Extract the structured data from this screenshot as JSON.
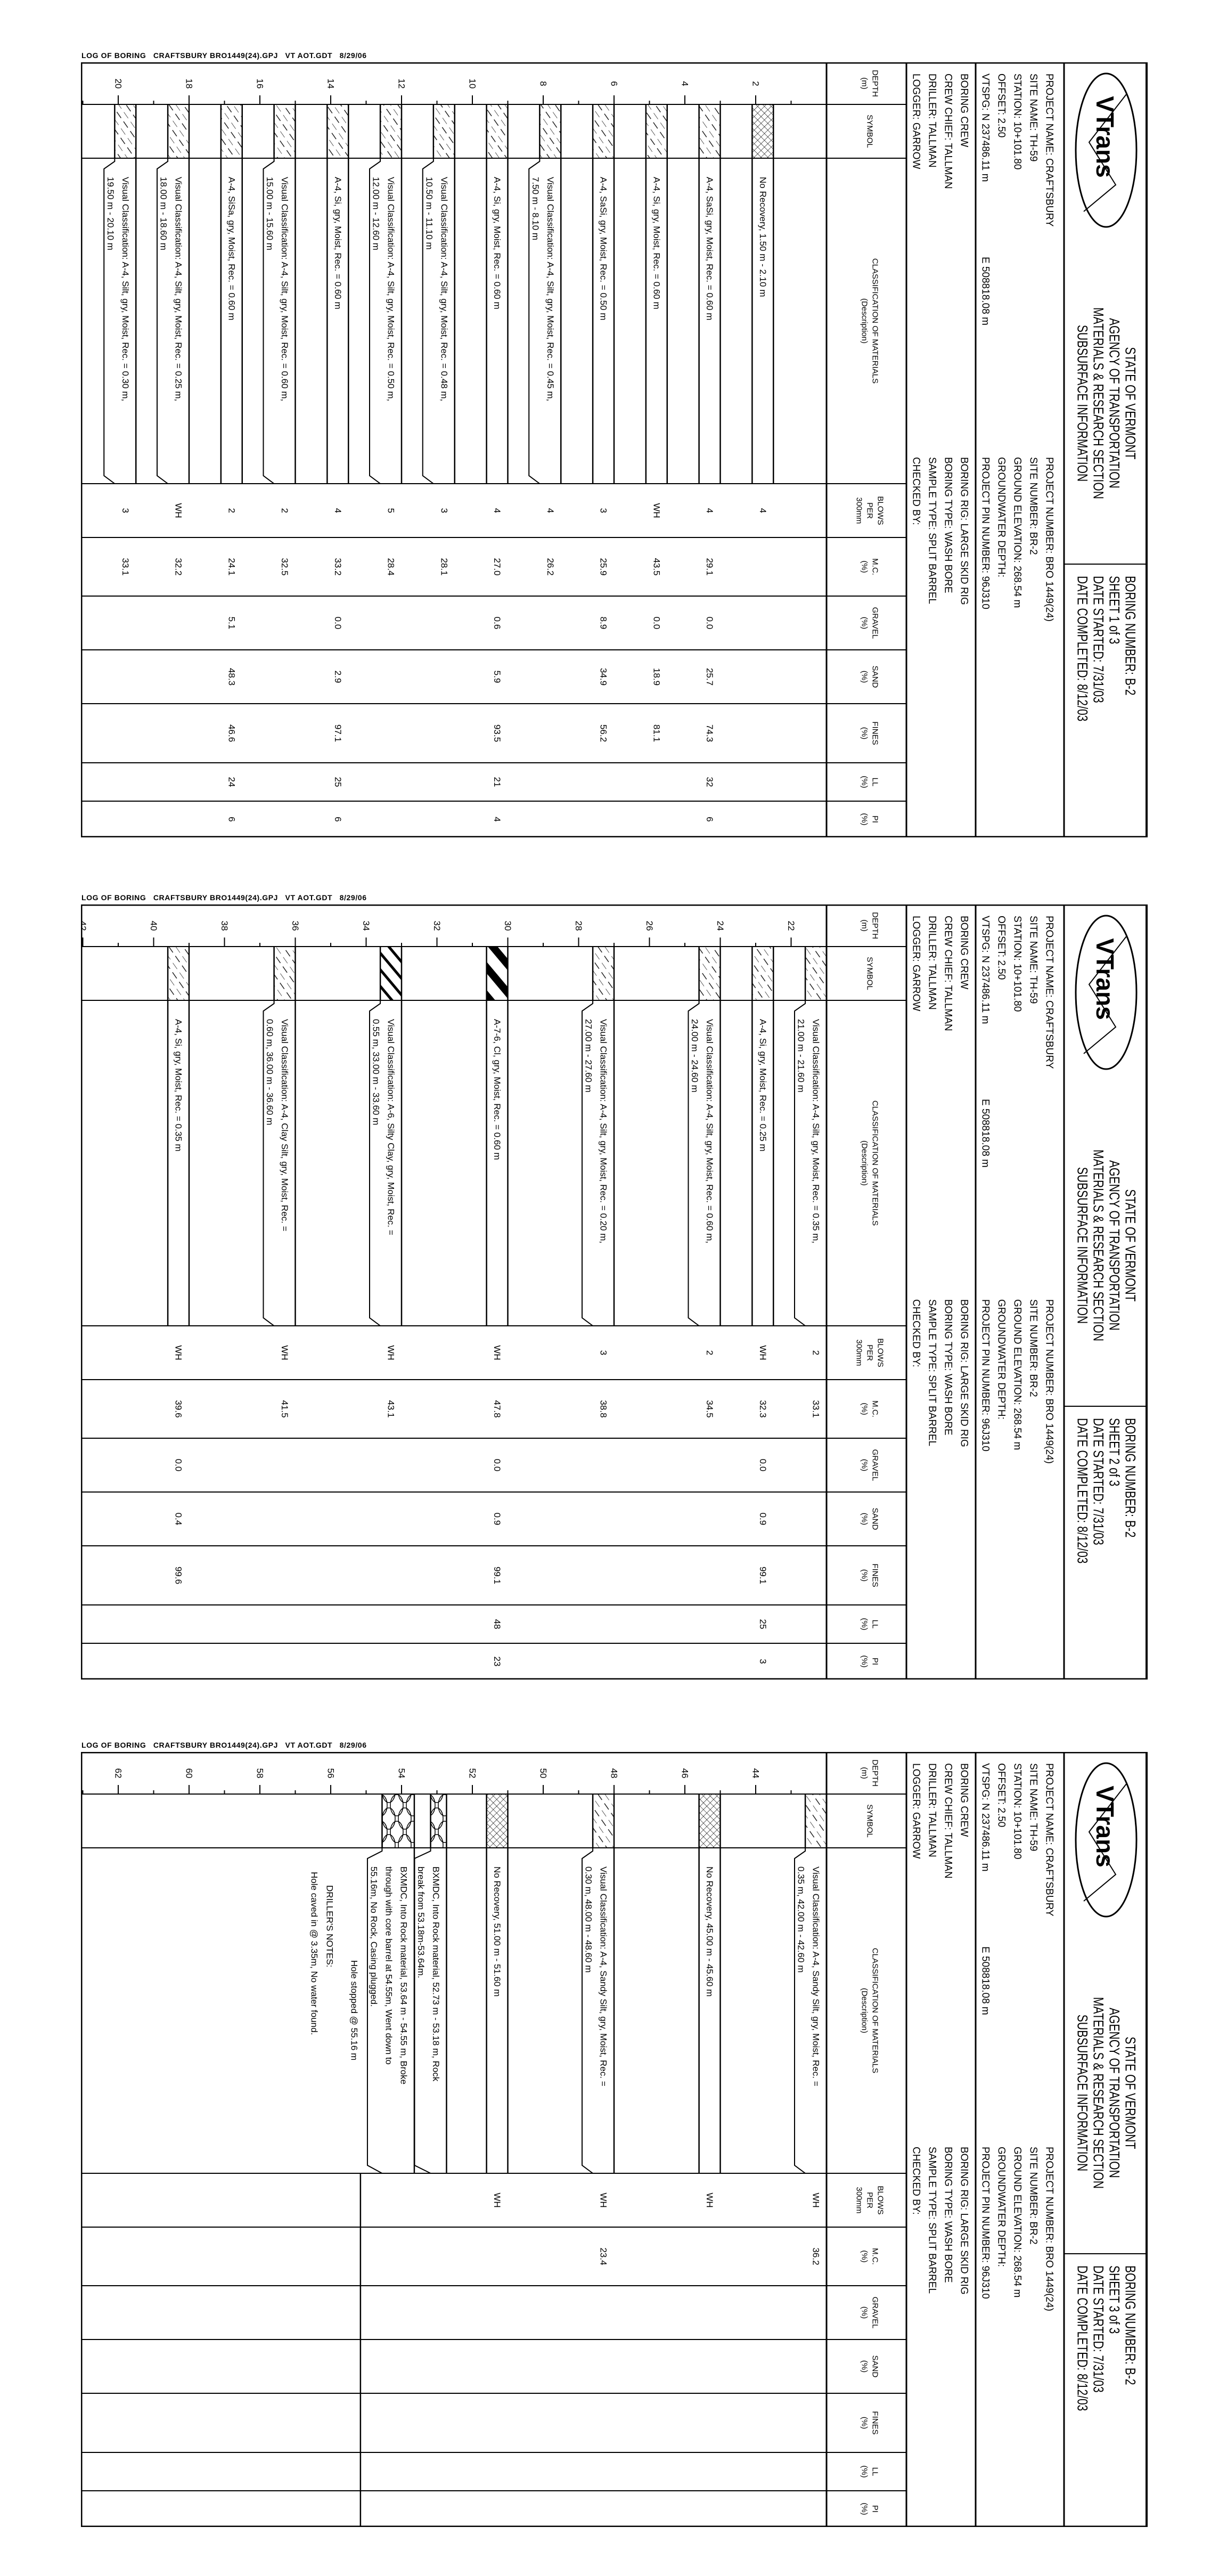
{
  "footer_text": "LOG OF BORING   CRAFTSBURY BRO1449(24).GPJ   VT AOT.GDT   8/29/06",
  "colors": {
    "ink": "#000000",
    "paper": "#ffffff"
  },
  "header": {
    "logo_text": "VTrans",
    "title_lines": [
      "STATE OF VERMONT",
      "AGENCY OF TRANSPORTATION",
      "MATERIALS & RESEARCH SECTION",
      "SUBSURFACE INFORMATION"
    ],
    "boring_number": "BORING NUMBER:  B-2",
    "date_started": "DATE STARTED:  7/31/03",
    "date_completed": "DATE COMPLETED:  8/12/03",
    "info_left": [
      "PROJECT NAME:  CRAFTSBURY",
      "SITE NAME:  TH-59",
      "STATION:  10+101.80",
      "OFFSET:  2.50",
      "VTSPG:  N 237486.11 m"
    ],
    "vtspg_e": "E 508818.08 m",
    "info_right": [
      "PROJECT NUMBER:  BRO 1449(24)",
      "SITE NUMBER:  BR-2",
      "GROUND ELEVATION:  268.54 m",
      "GROUNDWATER DEPTH:",
      "PROJECT PIN NUMBER: 96J310"
    ],
    "crew_left": [
      "BORING CREW",
      "CREW CHIEF:  TALLMAN",
      "DRILLER:  TALLMAN",
      "LOGGER:  GARROW"
    ],
    "crew_right": [
      "BORING RIG:  LARGE SKID RIG",
      "BORING TYPE:  WASH BORE",
      "SAMPLE TYPE:  SPLIT BARREL",
      "CHECKED BY:"
    ]
  },
  "columns": [
    {
      "lines": [
        "DEPTH",
        "(m)"
      ]
    },
    {
      "lines": [
        "SYMBOL"
      ]
    },
    {
      "lines": [
        "CLASSIFICATION OF MATERIALS",
        "(Description)"
      ]
    },
    {
      "lines": [
        "BLOWS",
        "PER",
        "300mm"
      ]
    },
    {
      "lines": [
        "M.C.",
        "(%)"
      ]
    },
    {
      "lines": [
        "GRAVEL",
        "(%)"
      ]
    },
    {
      "lines": [
        "SAND",
        "(%)"
      ]
    },
    {
      "lines": [
        "FINES",
        "(%)"
      ]
    },
    {
      "lines": [
        "LL",
        "(%)"
      ]
    },
    {
      "lines": [
        "PI",
        "(%)"
      ]
    }
  ],
  "sheets": [
    {
      "sheet_label": "SHEET  1 of 3",
      "depth_range_m": [
        0,
        21
      ],
      "samples": [
        {
          "top": 1.5,
          "bottom": 2.1,
          "symbol": "no-recovery",
          "description": [
            "No Recovery, 1.50 m - 2.10 m"
          ],
          "blows": "4"
        },
        {
          "top": 3.0,
          "bottom": 3.6,
          "symbol": "silt",
          "description": [
            "A-4, SaSi, gry, Moist, Rec. = 0.60 m"
          ],
          "blows": "4",
          "mc": "29.1",
          "gravel": "0.0",
          "sand": "25.7",
          "fines": "74.3",
          "ll": "32",
          "pi": "6"
        },
        {
          "top": 4.5,
          "bottom": 5.1,
          "symbol": "silt",
          "description": [
            "A-4, Si, gry, Moist, Rec. = 0.60 m"
          ],
          "blows": "WH",
          "mc": "43.5",
          "gravel": "0.0",
          "sand": "18.9",
          "fines": "81.1"
        },
        {
          "top": 6.0,
          "bottom": 6.6,
          "symbol": "silt",
          "description": [
            "A-4, SaSi, gry, Moist, Rec. = 0.50 m"
          ],
          "blows": "3",
          "mc": "25.9",
          "gravel": "8.9",
          "sand": "34.9",
          "fines": "56.2"
        },
        {
          "top": 7.5,
          "bottom": 8.1,
          "symbol": "silt",
          "description": [
            "Visual Classification: A-4, Silt, gry, Moist, Rec. = 0.45 m,",
            "7.50 m - 8.10 m"
          ],
          "blows": "4",
          "mc": "26.2"
        },
        {
          "top": 9.0,
          "bottom": 9.6,
          "symbol": "silt",
          "description": [
            "A-4, Si, gry, Moist, Rec. = 0.60 m"
          ],
          "blows": "4",
          "mc": "27.0",
          "gravel": "0.6",
          "sand": "5.9",
          "fines": "93.5",
          "ll": "21",
          "pi": "4"
        },
        {
          "top": 10.5,
          "bottom": 11.1,
          "symbol": "silt",
          "description": [
            "Visual Classification: A-4, Silt, gry, Moist, Rec. = 0.48 m,",
            "10.50 m - 11.10 m"
          ],
          "blows": "3",
          "mc": "28.1"
        },
        {
          "top": 12.0,
          "bottom": 12.6,
          "symbol": "silt",
          "description": [
            "Visual Classification: A-4, Silt, gry, Moist, Rec. = 0.50 m,",
            "12.00 m - 12.60 m"
          ],
          "blows": "5",
          "mc": "28.4"
        },
        {
          "top": 13.5,
          "bottom": 14.1,
          "symbol": "silt",
          "description": [
            "A-4, Si, gry, Moist, Rec. = 0.60 m"
          ],
          "blows": "4",
          "mc": "33.2",
          "gravel": "0.0",
          "sand": "2.9",
          "fines": "97.1",
          "ll": "25",
          "pi": "6"
        },
        {
          "top": 15.0,
          "bottom": 15.6,
          "symbol": "silt",
          "description": [
            "Visual Classification: A-4, Silt, gry, Moist, Rec. = 0.60 m,",
            "15.00 m - 15.60 m"
          ],
          "blows": "2",
          "mc": "32.5"
        },
        {
          "top": 16.5,
          "bottom": 17.1,
          "symbol": "silt",
          "description": [
            "A-4, SiSa, gry, Moist, Rec. = 0.60 m"
          ],
          "blows": "2",
          "mc": "24.1",
          "gravel": "5.1",
          "sand": "48.3",
          "fines": "46.6",
          "ll": "24",
          "pi": "6"
        },
        {
          "top": 18.0,
          "bottom": 18.6,
          "symbol": "silt",
          "description": [
            "Visual Classification: A-4, Silt, gry, Moist, Rec. = 0.25 m,",
            "18.00 m - 18.60 m"
          ],
          "blows": "WH",
          "mc": "32.2"
        },
        {
          "top": 19.5,
          "bottom": 20.1,
          "symbol": "silt",
          "description": [
            "Visual Classification: A-4, Silt, gry, Moist, Rec. = 0.30 m,",
            "19.50 m - 20.10 m"
          ],
          "blows": "3",
          "mc": "33.1"
        }
      ],
      "notes": []
    },
    {
      "sheet_label": "SHEET  2 of 3",
      "depth_range_m": [
        21,
        42
      ],
      "samples": [
        {
          "top": 21.0,
          "bottom": 21.6,
          "symbol": "silt",
          "description": [
            "Visual Classification: A-4, Silt, gry, Moist, Rec. = 0.35 m,",
            "21.00 m - 21.60 m"
          ],
          "blows": "2",
          "mc": "33.1"
        },
        {
          "top": 22.5,
          "bottom": 23.1,
          "symbol": "silt",
          "description": [
            "A-4, Si, gry, Moist, Rec. = 0.25 m"
          ],
          "blows": "WH",
          "mc": "32.3",
          "gravel": "0.0",
          "sand": "0.9",
          "fines": "99.1",
          "ll": "25",
          "pi": "3"
        },
        {
          "top": 24.0,
          "bottom": 24.6,
          "symbol": "silt",
          "description": [
            "Visual Classification: A-4, Silt, gry, Moist, Rec. = 0.60 m,",
            "24.00 m - 24.60 m"
          ],
          "blows": "2",
          "mc": "34.5"
        },
        {
          "top": 27.0,
          "bottom": 27.6,
          "symbol": "silt",
          "description": [
            "Visual Classification: A-4, Silt, gry, Moist, Rec. = 0.20 m,",
            "27.00 m - 27.60 m"
          ],
          "blows": "3",
          "mc": "38.8"
        },
        {
          "top": 30.0,
          "bottom": 30.6,
          "symbol": "clay",
          "description": [
            "A-7-6, Cl, gry, Moist, Rec. = 0.60 m"
          ],
          "blows": "WH",
          "mc": "47.8",
          "gravel": "0.0",
          "sand": "0.9",
          "fines": "99.1",
          "ll": "48",
          "pi": "23"
        },
        {
          "top": 33.0,
          "bottom": 33.6,
          "symbol": "silty-clay",
          "description": [
            "Visual Classification: A-6, Silty Clay, gry, Moist, Rec. =",
            "0.55 m, 33.00 m - 33.60 m"
          ],
          "blows": "WH",
          "mc": "43.1"
        },
        {
          "top": 36.0,
          "bottom": 36.6,
          "symbol": "silt",
          "description": [
            "Visual Classification: A-4, Clay Silt, gry, Moist, Rec. =",
            "0.60 m, 36.00 m - 36.60 m"
          ],
          "blows": "WH",
          "mc": "41.5"
        },
        {
          "top": 39.0,
          "bottom": 39.6,
          "symbol": "silt",
          "description": [
            "A-4, Si, gry, Moist, Rec. = 0.35 m"
          ],
          "blows": "WH",
          "mc": "39.6",
          "gravel": "0.0",
          "sand": "0.4",
          "fines": "99.6"
        }
      ],
      "notes": []
    },
    {
      "sheet_label": "SHEET  3 of 3",
      "depth_range_m": [
        42,
        63
      ],
      "hole_bottom_m": 55.16,
      "samples": [
        {
          "top": 42.0,
          "bottom": 42.6,
          "symbol": "silt",
          "description": [
            "Visual Classification: A-4, Sandy Silt, gry, Moist, Rec. =",
            "0.35 m, 42.00 m - 42.60 m"
          ],
          "blows": "WH",
          "mc": "36.2"
        },
        {
          "top": 45.0,
          "bottom": 45.6,
          "symbol": "no-recovery",
          "description": [
            "No Recovery, 45.00 m - 45.60 m"
          ],
          "blows": "WH"
        },
        {
          "top": 48.0,
          "bottom": 48.6,
          "symbol": "silt",
          "description": [
            "Visual Classification: A-4, Sandy Silt, gry, Moist, Rec. =",
            "0.30 m, 48.00 m - 48.60 m"
          ],
          "blows": "WH",
          "mc": "23.4"
        },
        {
          "top": 51.0,
          "bottom": 51.6,
          "symbol": "no-recovery",
          "description": [
            "No Recovery, 51.00 m - 51.60 m"
          ],
          "blows": "WH"
        },
        {
          "top": 52.73,
          "bottom": 53.18,
          "symbol": "rock",
          "description": [
            "BXMDC, Into Rock material, 52.73 m - 53.18 m, Rock",
            "break from 53.18m-53.64m."
          ]
        },
        {
          "top": 53.64,
          "bottom": 54.55,
          "symbol": "rock",
          "description": [
            "BXMDC, Into Rock material, 53.64 m - 54.55 m, Broke",
            "through with core barrel at 54.55m, Went down to",
            "55.16m, No Rock, Casing plugged."
          ]
        }
      ],
      "notes": [
        {
          "text": "Hole stopped @ 55.16 m",
          "align": "center"
        },
        {
          "text": "DRILLER'S NOTES:",
          "align": "left"
        },
        {
          "text": "Hole caved in @ 3.35m, No water found.",
          "align": "left"
        }
      ]
    }
  ]
}
